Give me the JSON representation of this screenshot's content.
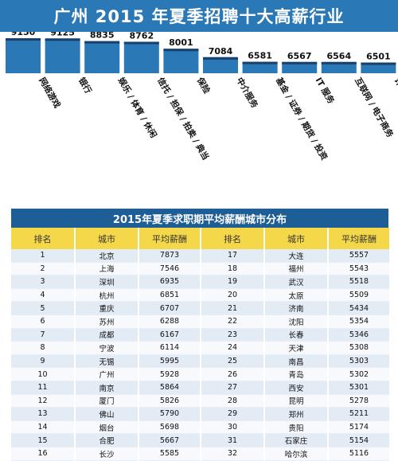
{
  "header": {
    "title": "广州 2015 年夏季招聘十大高薪行业"
  },
  "chart_data": {
    "type": "bar",
    "title": "广州 2015 年夏季招聘十大高薪行业",
    "categories": [
      "网络游戏",
      "银行",
      "娱乐 / 体育 / 休闲",
      "信托 / 担保 / 拍卖 / 典当",
      "保险",
      "中介服务",
      "基金 / 证券 / 期货 / 投资",
      "IT 服务",
      "互联网 / 电子商务",
      "计算机软件"
    ],
    "values": [
      9150,
      9125,
      8835,
      8762,
      8001,
      7084,
      6581,
      6567,
      6564,
      6501
    ],
    "colors": {
      "bar": "#2a78b5",
      "bar_cap": "#1a3f6b"
    }
  },
  "table": {
    "title": "2015年夏季求职期平均薪酬城市分布",
    "headers": [
      "排名",
      "城市",
      "平均薪酬",
      "排名",
      "城市",
      "平均薪酬"
    ],
    "rows": [
      [
        "1",
        "北京",
        "7873",
        "17",
        "大连",
        "5557"
      ],
      [
        "2",
        "上海",
        "7546",
        "18",
        "福州",
        "5543"
      ],
      [
        "3",
        "深圳",
        "6935",
        "19",
        "武汉",
        "5518"
      ],
      [
        "4",
        "杭州",
        "6851",
        "20",
        "太原",
        "5509"
      ],
      [
        "5",
        "重庆",
        "6707",
        "21",
        "济南",
        "5434"
      ],
      [
        "6",
        "苏州",
        "6288",
        "22",
        "沈阳",
        "5354"
      ],
      [
        "7",
        "成都",
        "6167",
        "23",
        "长春",
        "5346"
      ],
      [
        "8",
        "宁波",
        "6114",
        "24",
        "天津",
        "5308"
      ],
      [
        "9",
        "无锡",
        "5995",
        "25",
        "南昌",
        "5303"
      ],
      [
        "10",
        "广州",
        "5928",
        "26",
        "青岛",
        "5302"
      ],
      [
        "11",
        "南京",
        "5864",
        "27",
        "西安",
        "5301"
      ],
      [
        "12",
        "厦门",
        "5826",
        "28",
        "昆明",
        "5278"
      ],
      [
        "13",
        "佛山",
        "5790",
        "29",
        "郑州",
        "5211"
      ],
      [
        "14",
        "烟台",
        "5698",
        "30",
        "贵阳",
        "5174"
      ],
      [
        "15",
        "合肥",
        "5667",
        "31",
        "石家庄",
        "5154"
      ],
      [
        "16",
        "长沙",
        "5585",
        "32",
        "哈尔滨",
        "5116"
      ]
    ]
  }
}
